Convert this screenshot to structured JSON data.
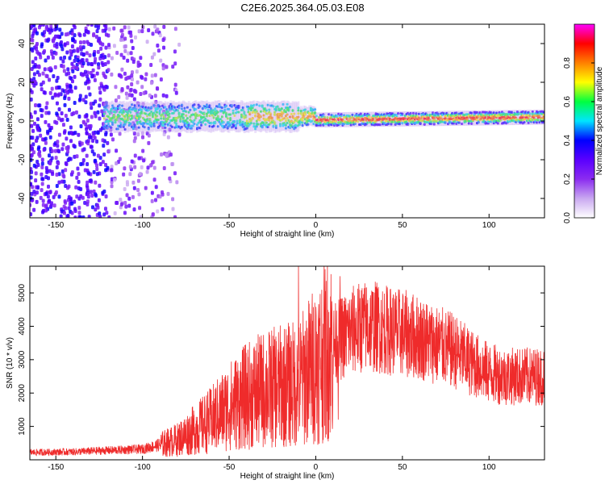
{
  "title": "C2E6.2025.364.05.03.E08",
  "chart_data": [
    {
      "type": "heatmap",
      "xlabel": "Height of straight line (km)",
      "ylabel": "Frequency (Hz)",
      "xlim": [
        -165,
        132
      ],
      "ylim": [
        -50,
        50
      ],
      "xticks": [
        -150,
        -100,
        -50,
        0,
        50,
        100
      ],
      "yticks": [
        -40,
        -20,
        0,
        20,
        40
      ],
      "colorbar": {
        "label": "Normalized spectral amplitude",
        "range": [
          0,
          1
        ],
        "ticks": [
          0,
          0.2,
          0.4,
          0.6,
          0.8
        ],
        "colormap": [
          "#ffffff",
          "#c9a8f0",
          "#8b2cf0",
          "#5a00ff",
          "#0000ff",
          "#00e5ff",
          "#00ff40",
          "#ffff00",
          "#ff8000",
          "#ff0000",
          "#ff00ff"
        ]
      },
      "grid": false
    },
    {
      "type": "line",
      "xlabel": "Height of straight line (km)",
      "ylabel": "SNR (10 * v/v)",
      "xlim": [
        -165,
        132
      ],
      "ylim": [
        0,
        5800
      ],
      "xticks": [
        -150,
        -100,
        -50,
        0,
        50,
        100
      ],
      "yticks": [
        1000,
        2000,
        3000,
        4000,
        5000
      ],
      "series": [
        {
          "color": "#ef2b2b",
          "envelope_x": [
            -165,
            -140,
            -120,
            -100,
            -90,
            -80,
            -70,
            -60,
            -50,
            -40,
            -30,
            -20,
            -15,
            -10,
            -5,
            0,
            5,
            10,
            15,
            20,
            25,
            30,
            35,
            40,
            50,
            60,
            70,
            80,
            90,
            100,
            110,
            120,
            132
          ],
          "envelope_y": [
            220,
            240,
            280,
            320,
            450,
            600,
            900,
            1200,
            1600,
            1900,
            2100,
            2200,
            2250,
            2300,
            2600,
            2900,
            3200,
            3450,
            3650,
            3850,
            3950,
            4000,
            3980,
            3900,
            3800,
            3650,
            3450,
            3250,
            2900,
            2600,
            2500,
            2500,
            2500
          ],
          "spikes": [
            {
              "x": -10,
              "y": 5800
            },
            {
              "x": 14,
              "y": 5500
            },
            {
              "x": 13,
              "y": 1200
            }
          ]
        }
      ],
      "grid": false
    }
  ]
}
